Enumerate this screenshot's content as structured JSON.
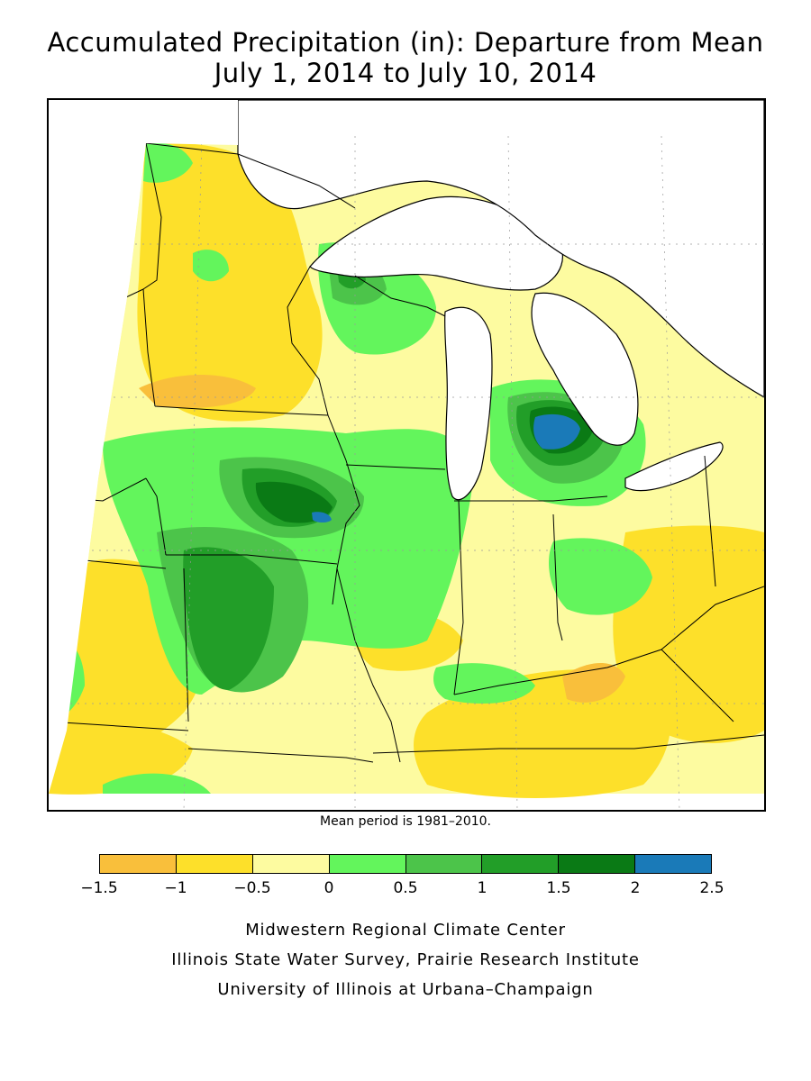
{
  "title": {
    "line1": "Accumulated Precipitation (in): Departure from Mean",
    "line2": "July 1, 2014 to July 10, 2014"
  },
  "note": "Mean period is 1981–2010.",
  "legend": {
    "colors": [
      "#f9bf3b",
      "#fde02a",
      "#fdfba0",
      "#63f55c",
      "#4cc44a",
      "#229e28",
      "#0a7a15",
      "#1a7ab8"
    ],
    "ticks": [
      "−1.5",
      "−1",
      "−0.5",
      "0",
      "0.5",
      "1",
      "1.5",
      "2",
      "2.5"
    ]
  },
  "credits": {
    "line1": "Midwestern Regional Climate Center",
    "line2": "Illinois State Water Survey, Prairie Research Institute",
    "line3": "University of Illinois at Urbana–Champaign"
  }
}
